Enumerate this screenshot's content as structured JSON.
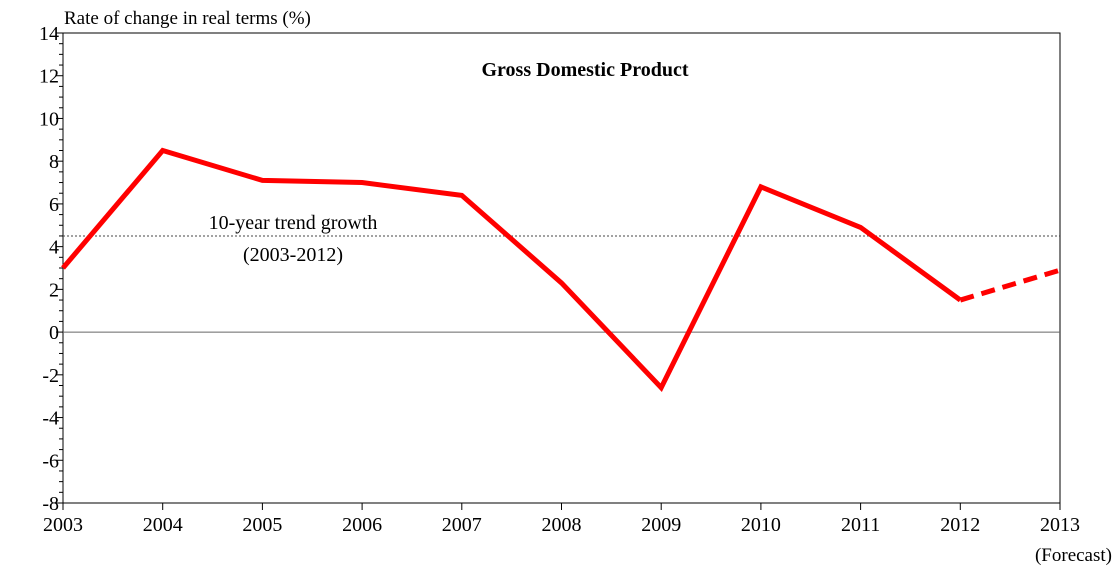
{
  "chart_data": {
    "type": "line",
    "title": "Gross Domestic Product",
    "ylabel": "Rate of change in real terms (%)",
    "xlabel": "",
    "ylim": [
      -8,
      14
    ],
    "yticks": [
      -8,
      -6,
      -4,
      -2,
      0,
      2,
      4,
      6,
      8,
      10,
      12,
      14
    ],
    "categories": [
      "2003",
      "2004",
      "2005",
      "2006",
      "2007",
      "2008",
      "2009",
      "2010",
      "2011",
      "2012",
      "2013"
    ],
    "x_note": "(Forecast)",
    "series": [
      {
        "values": [
          3.0,
          8.5,
          7.1,
          7.0,
          6.4,
          2.3,
          -2.6,
          6.8,
          4.9,
          1.5,
          2.9
        ],
        "color": "#ff0000",
        "dashed_from_index": 9
      }
    ],
    "reference_line": {
      "value": 4.5,
      "label_line1": "10-year trend growth",
      "label_line2": "(2003-2012)"
    },
    "zero_line": true,
    "grid": false
  }
}
